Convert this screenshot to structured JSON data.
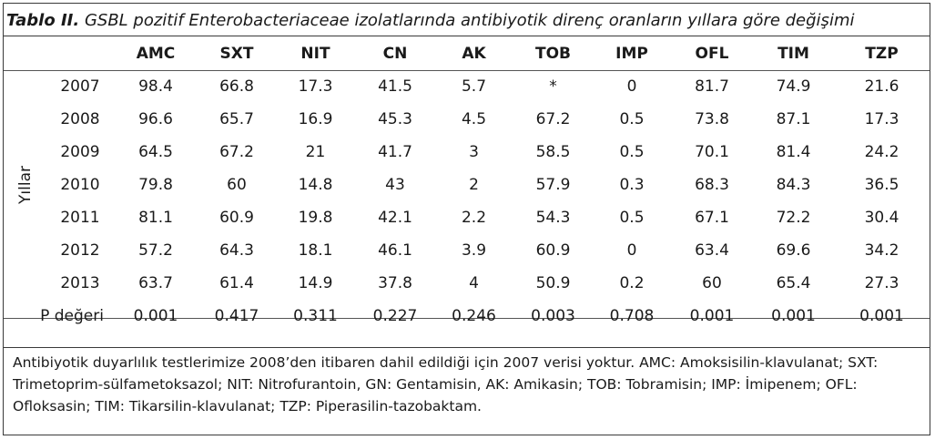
{
  "caption": {
    "label": "Tablo II.",
    "text": " GSBL pozitif Enterobacteriaceae izolatlarında antibiyotik direnç oranların yıllara göre değişimi"
  },
  "table": {
    "row_group_label": "Yıllar",
    "columns": [
      "AMC",
      "SXT",
      "NIT",
      "CN",
      "AK",
      "TOB",
      "IMP",
      "OFL",
      "TIM",
      "TZP"
    ],
    "rows": [
      {
        "year": "2007",
        "values": [
          "98.4",
          "66.8",
          "17.3",
          "41.5",
          "5.7",
          "*",
          "0",
          "81.7",
          "74.9",
          "21.6"
        ]
      },
      {
        "year": "2008",
        "values": [
          "96.6",
          "65.7",
          "16.9",
          "45.3",
          "4.5",
          "67.2",
          "0.5",
          "73.8",
          "87.1",
          "17.3"
        ]
      },
      {
        "year": "2009",
        "values": [
          "64.5",
          "67.2",
          "21",
          "41.7",
          "3",
          "58.5",
          "0.5",
          "70.1",
          "81.4",
          "24.2"
        ]
      },
      {
        "year": "2010",
        "values": [
          "79.8",
          "60",
          "14.8",
          "43",
          "2",
          "57.9",
          "0.3",
          "68.3",
          "84.3",
          "36.5"
        ]
      },
      {
        "year": "2011",
        "values": [
          "81.1",
          "60.9",
          "19.8",
          "42.1",
          "2.2",
          "54.3",
          "0.5",
          "67.1",
          "72.2",
          "30.4"
        ]
      },
      {
        "year": "2012",
        "values": [
          "57.2",
          "64.3",
          "18.1",
          "46.1",
          "3.9",
          "60.9",
          "0",
          "63.4",
          "69.6",
          "34.2"
        ]
      },
      {
        "year": "2013",
        "values": [
          "63.7",
          "61.4",
          "14.9",
          "37.8",
          "4",
          "50.9",
          "0.2",
          "60",
          "65.4",
          "27.3"
        ]
      }
    ],
    "pvalue": {
      "label": "P değeri",
      "values": [
        "0.001",
        "0.417",
        "0.311",
        "0.227",
        "0.246",
        "0.003",
        "0.708",
        "0.001",
        "0.001",
        "0.001"
      ]
    }
  },
  "footnote": "Antibiyotik duyarlılık testlerimize 2008’den itibaren dahil edildiği için 2007 verisi yoktur. AMC: Amoksisilin-klavulanat; SXT: Trimetoprim-sülfametoksazol; NIT: Nitrofurantoin, GN: Gentamisin, AK: Amikasin; TOB: Tobramisin; IMP: İmipenem; OFL: Ofloksasin; TIM: Tikarsilin-klavulanat; TZP: Piperasilin-tazobaktam."
}
